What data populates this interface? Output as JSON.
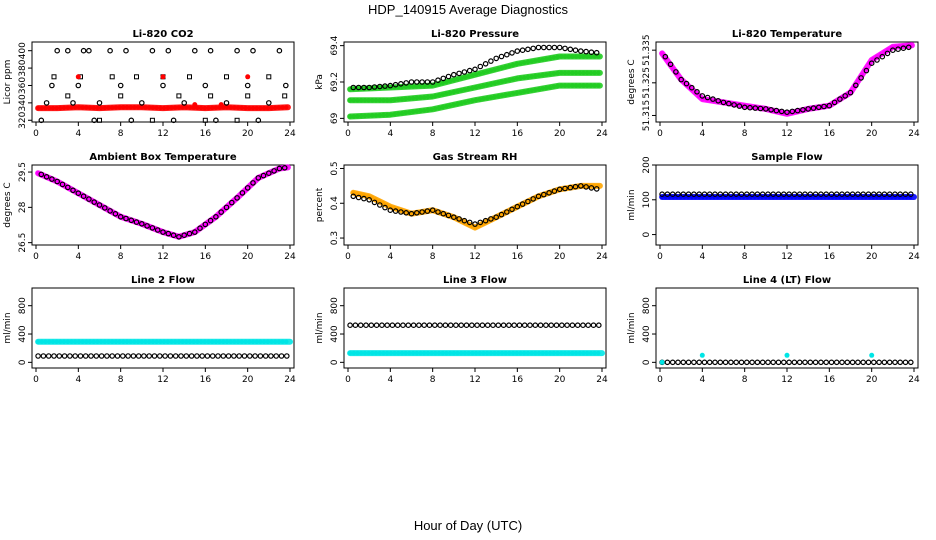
{
  "title": "HDP_140915  Average Diagnostics",
  "xlabel": "Hour of Day (UTC)",
  "colors": {
    "black": "#000000",
    "red": "#ff0000",
    "green": "#22cc22",
    "magenta": "#ff00ff",
    "orange": "#ffa500",
    "blue": "#0000ff",
    "cyan": "#00e5e5"
  },
  "chart_data": [
    {
      "type": "scatter",
      "title": "Li-820 CO2",
      "ylabel": "Licor ppm",
      "xlim": [
        0,
        24
      ],
      "xticks": [
        0,
        4,
        8,
        12,
        16,
        20,
        24
      ],
      "ylim": [
        318,
        410
      ],
      "yticks": [
        320,
        340,
        360,
        380,
        400
      ],
      "series": [
        {
          "color": "red",
          "kind": "band",
          "points": [
            [
              0.2,
              334
            ],
            [
              2,
              334
            ],
            [
              4,
              335
            ],
            [
              6,
              334
            ],
            [
              8,
              335
            ],
            [
              10,
              335
            ],
            [
              12,
              334
            ],
            [
              14,
              335
            ],
            [
              16,
              334
            ],
            [
              18,
              335
            ],
            [
              20,
              334
            ],
            [
              22,
              334
            ],
            [
              23.8,
              335
            ]
          ]
        },
        {
          "color": "black",
          "kind": "open",
          "points": [
            [
              0.5,
              320
            ],
            [
              1,
              340
            ],
            [
              1.5,
              360
            ],
            [
              2,
              400
            ],
            [
              3,
              400
            ],
            [
              3.5,
              340
            ],
            [
              4,
              360
            ],
            [
              4.5,
              400
            ],
            [
              5,
              400
            ],
            [
              5.5,
              320
            ],
            [
              6,
              340
            ],
            [
              7,
              400
            ],
            [
              8,
              360
            ],
            [
              8.5,
              400
            ],
            [
              9,
              320
            ],
            [
              10,
              340
            ],
            [
              11,
              400
            ],
            [
              12,
              360
            ],
            [
              12.5,
              400
            ],
            [
              13,
              320
            ],
            [
              14,
              340
            ],
            [
              15,
              400
            ],
            [
              16,
              360
            ],
            [
              16.5,
              400
            ],
            [
              17,
              320
            ],
            [
              18,
              340
            ],
            [
              19,
              400
            ],
            [
              20,
              360
            ],
            [
              20.5,
              400
            ],
            [
              21,
              320
            ],
            [
              22,
              340
            ],
            [
              23,
              400
            ],
            [
              23.6,
              360
            ]
          ]
        },
        {
          "color": "black",
          "kind": "square",
          "points": [
            [
              1.7,
              370
            ],
            [
              3,
              348
            ],
            [
              4.2,
              370
            ],
            [
              6,
              320
            ],
            [
              7.2,
              370
            ],
            [
              8,
              348
            ],
            [
              9.5,
              370
            ],
            [
              11,
              320
            ],
            [
              12,
              370
            ],
            [
              13.5,
              348
            ],
            [
              14.5,
              370
            ],
            [
              16,
              320
            ],
            [
              16.5,
              348
            ],
            [
              18,
              370
            ],
            [
              19,
              320
            ],
            [
              20,
              348
            ],
            [
              22,
              370
            ],
            [
              23.5,
              348
            ]
          ]
        },
        {
          "color": "red",
          "kind": "dot",
          "points": [
            [
              4,
              370
            ],
            [
              12,
              370
            ],
            [
              20,
              370
            ],
            [
              15,
              338
            ],
            [
              17.5,
              338
            ]
          ]
        }
      ]
    },
    {
      "type": "scatter",
      "title": "Li-820 Pressure",
      "ylabel": "kPa",
      "xlim": [
        0,
        24
      ],
      "xticks": [
        0,
        4,
        8,
        12,
        16,
        20,
        24
      ],
      "ylim": [
        68.98,
        69.42
      ],
      "yticks": [
        69.0,
        69.2,
        69.4
      ],
      "series": [
        {
          "color": "green",
          "kind": "band",
          "points": [
            [
              0.2,
              69.16
            ],
            [
              4,
              69.17
            ],
            [
              8,
              69.18
            ],
            [
              12,
              69.24
            ],
            [
              16,
              69.3
            ],
            [
              20,
              69.34
            ],
            [
              23.8,
              69.34
            ]
          ]
        },
        {
          "color": "green",
          "kind": "band",
          "points": [
            [
              0.2,
              69.1
            ],
            [
              4,
              69.1
            ],
            [
              8,
              69.12
            ],
            [
              12,
              69.17
            ],
            [
              16,
              69.22
            ],
            [
              20,
              69.25
            ],
            [
              23.8,
              69.25
            ]
          ]
        },
        {
          "color": "green",
          "kind": "band",
          "points": [
            [
              0.2,
              69.01
            ],
            [
              4,
              69.02
            ],
            [
              8,
              69.05
            ],
            [
              12,
              69.1
            ],
            [
              16,
              69.14
            ],
            [
              20,
              69.18
            ],
            [
              23.8,
              69.18
            ]
          ]
        },
        {
          "color": "black",
          "kind": "open",
          "points": [
            [
              0.5,
              69.17
            ],
            [
              2,
              69.17
            ],
            [
              4,
              69.18
            ],
            [
              6,
              69.2
            ],
            [
              8,
              69.2
            ],
            [
              10,
              69.24
            ],
            [
              12,
              69.27
            ],
            [
              14,
              69.33
            ],
            [
              16,
              69.37
            ],
            [
              18,
              69.39
            ],
            [
              20,
              69.39
            ],
            [
              22,
              69.37
            ],
            [
              23.7,
              69.36
            ]
          ]
        }
      ]
    },
    {
      "type": "scatter",
      "title": "Li-820 Temperature",
      "ylabel": "degrees C",
      "xlim": [
        0,
        24
      ],
      "xticks": [
        0,
        4,
        8,
        12,
        16,
        20,
        24
      ],
      "ylim": [
        51.313,
        51.3375
      ],
      "yticks": [
        51.315,
        51.325,
        51.335
      ],
      "series": [
        {
          "color": "magenta",
          "kind": "band",
          "points": [
            [
              0.2,
              51.334
            ],
            [
              2,
              51.326
            ],
            [
              4,
              51.32
            ],
            [
              6,
              51.319
            ],
            [
              8,
              51.318
            ],
            [
              10,
              51.317
            ],
            [
              12,
              51.3155
            ],
            [
              14,
              51.317
            ],
            [
              16,
              51.318
            ],
            [
              18,
              51.322
            ],
            [
              20,
              51.332
            ],
            [
              22,
              51.336
            ],
            [
              23.8,
              51.3365
            ]
          ]
        },
        {
          "color": "black",
          "kind": "open",
          "points": [
            [
              0.5,
              51.333
            ],
            [
              2,
              51.326
            ],
            [
              4,
              51.321
            ],
            [
              6,
              51.319
            ],
            [
              8,
              51.3175
            ],
            [
              10,
              51.317
            ],
            [
              12,
              51.316
            ],
            [
              14,
              51.317
            ],
            [
              16,
              51.318
            ],
            [
              18,
              51.322
            ],
            [
              20,
              51.331
            ],
            [
              22,
              51.335
            ],
            [
              23.7,
              51.336
            ]
          ]
        }
      ]
    },
    {
      "type": "scatter",
      "title": "Ambient Box Temperature",
      "ylabel": "degrees C",
      "xlim": [
        0,
        24
      ],
      "xticks": [
        0,
        4,
        8,
        12,
        16,
        20,
        24
      ],
      "ylim": [
        26.4,
        29.8
      ],
      "yticks": [
        26.5,
        28.0,
        29.5
      ],
      "series": [
        {
          "color": "magenta",
          "kind": "band",
          "points": [
            [
              0.2,
              29.45
            ],
            [
              2,
              29.1
            ],
            [
              4,
              28.6
            ],
            [
              6,
              28.1
            ],
            [
              8,
              27.6
            ],
            [
              10,
              27.3
            ],
            [
              12,
              26.95
            ],
            [
              13.5,
              26.75
            ],
            [
              15,
              26.95
            ],
            [
              17,
              27.6
            ],
            [
              19,
              28.4
            ],
            [
              21,
              29.25
            ],
            [
              23,
              29.65
            ],
            [
              23.8,
              29.7
            ]
          ]
        },
        {
          "color": "black",
          "kind": "open",
          "points": [
            [
              0.5,
              29.4
            ],
            [
              2,
              29.1
            ],
            [
              4,
              28.6
            ],
            [
              6,
              28.1
            ],
            [
              8,
              27.6
            ],
            [
              10,
              27.3
            ],
            [
              12,
              26.95
            ],
            [
              13.5,
              26.75
            ],
            [
              15,
              26.95
            ],
            [
              17,
              27.6
            ],
            [
              19,
              28.4
            ],
            [
              21,
              29.25
            ],
            [
              23,
              29.65
            ],
            [
              23.8,
              29.7
            ]
          ]
        }
      ]
    },
    {
      "type": "scatter",
      "title": "Gas Stream RH",
      "ylabel": "percent",
      "xlim": [
        0,
        24
      ],
      "xticks": [
        0,
        4,
        8,
        12,
        16,
        20,
        24
      ],
      "ylim": [
        0.28,
        0.51
      ],
      "yticks": [
        0.3,
        0.4,
        0.5
      ],
      "series": [
        {
          "color": "orange",
          "kind": "band",
          "points": [
            [
              0.5,
              0.43
            ],
            [
              2,
              0.42
            ],
            [
              4,
              0.39
            ],
            [
              6,
              0.37
            ],
            [
              8,
              0.38
            ],
            [
              10,
              0.36
            ],
            [
              12,
              0.33
            ],
            [
              14,
              0.36
            ],
            [
              16,
              0.39
            ],
            [
              18,
              0.42
            ],
            [
              20,
              0.44
            ],
            [
              22,
              0.45
            ],
            [
              23.8,
              0.45
            ]
          ]
        },
        {
          "color": "black",
          "kind": "open",
          "points": [
            [
              0.5,
              0.42
            ],
            [
              2,
              0.41
            ],
            [
              4,
              0.38
            ],
            [
              6,
              0.37
            ],
            [
              8,
              0.38
            ],
            [
              10,
              0.36
            ],
            [
              12,
              0.34
            ],
            [
              14,
              0.36
            ],
            [
              16,
              0.39
            ],
            [
              18,
              0.42
            ],
            [
              20,
              0.44
            ],
            [
              22,
              0.45
            ],
            [
              23.7,
              0.44
            ]
          ]
        }
      ]
    },
    {
      "type": "scatter",
      "title": "Sample Flow",
      "ylabel": "ml/min",
      "xlim": [
        0,
        24
      ],
      "xticks": [
        0,
        4,
        8,
        12,
        16,
        20,
        24
      ],
      "ylim": [
        -30,
        200
      ],
      "yticks": [
        0,
        100,
        200
      ],
      "series": [
        {
          "color": "blue",
          "kind": "band",
          "points": [
            [
              0.2,
              108
            ],
            [
              24,
              108
            ]
          ]
        },
        {
          "color": "black",
          "kind": "open",
          "points": [
            [
              0.2,
              116
            ],
            [
              24,
              116
            ]
          ]
        }
      ]
    },
    {
      "type": "scatter",
      "title": "Line 2 Flow",
      "ylabel": "ml/min",
      "xlim": [
        0,
        24
      ],
      "xticks": [
        0,
        4,
        8,
        12,
        16,
        20,
        24
      ],
      "ylim": [
        -80,
        1050
      ],
      "yticks": [
        0,
        400,
        800
      ],
      "series": [
        {
          "color": "cyan",
          "kind": "band",
          "points": [
            [
              0.2,
              290
            ],
            [
              24,
              290
            ]
          ]
        },
        {
          "color": "black",
          "kind": "open",
          "points": [
            [
              0.2,
              90
            ],
            [
              24,
              90
            ]
          ]
        }
      ]
    },
    {
      "type": "scatter",
      "title": "Line 3 Flow",
      "ylabel": "ml/min",
      "xlim": [
        0,
        24
      ],
      "xticks": [
        0,
        4,
        8,
        12,
        16,
        20,
        24
      ],
      "ylim": [
        -80,
        1050
      ],
      "yticks": [
        0,
        400,
        800
      ],
      "series": [
        {
          "color": "cyan",
          "kind": "band",
          "points": [
            [
              0.2,
              130
            ],
            [
              24,
              130
            ]
          ]
        },
        {
          "color": "black",
          "kind": "open",
          "points": [
            [
              0.2,
              525
            ],
            [
              24,
              525
            ]
          ]
        }
      ]
    },
    {
      "type": "scatter",
      "title": "Line 4 (LT) Flow",
      "ylabel": "ml/min",
      "xlim": [
        0,
        24
      ],
      "xticks": [
        0,
        4,
        8,
        12,
        16,
        20,
        24
      ],
      "ylim": [
        -80,
        1050
      ],
      "yticks": [
        0,
        400,
        800
      ],
      "series": [
        {
          "color": "black",
          "kind": "open",
          "points": [
            [
              0.2,
              0
            ],
            [
              24,
              0
            ]
          ]
        },
        {
          "color": "cyan",
          "kind": "dot",
          "points": [
            [
              0.2,
              0
            ],
            [
              4,
              100
            ],
            [
              12,
              100
            ],
            [
              20,
              100
            ]
          ]
        }
      ]
    }
  ]
}
